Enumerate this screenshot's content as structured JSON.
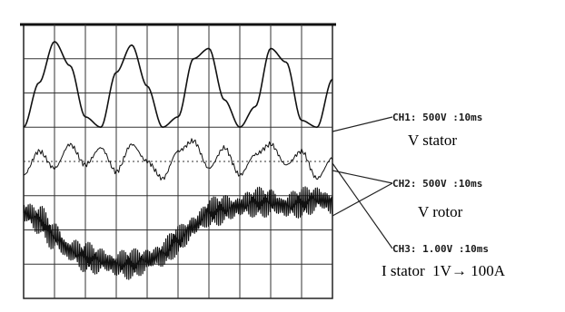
{
  "chart_data": {
    "type": "line",
    "title": "",
    "xlabel": "",
    "ylabel": "",
    "grid": true,
    "x_divisions": 10,
    "y_divisions": 8,
    "channels": [
      {
        "id": "CH1",
        "scale_label": "CH1: 500V :10ms",
        "description": "V stator"
      },
      {
        "id": "CH2",
        "scale_label": "CH2: 500V :10ms",
        "description": "V rotor"
      },
      {
        "id": "CH3",
        "scale_label": "CH3: 1.00V :10ms",
        "description": "I stator  1V→ 100A"
      }
    ],
    "series": [
      {
        "name": "V stator",
        "x": [
          0.0,
          0.5,
          1.0,
          1.5,
          2.0,
          2.5,
          3.0,
          3.5,
          4.0,
          4.5,
          5.0,
          5.5,
          6.0,
          6.5,
          7.0,
          7.5,
          8.0,
          8.5,
          9.0,
          9.5,
          10.0
        ],
        "y": [
          1.0,
          2.3,
          3.5,
          2.8,
          1.3,
          1.0,
          2.6,
          3.4,
          2.2,
          1.0,
          1.3,
          3.0,
          3.3,
          1.8,
          1.0,
          1.6,
          3.3,
          2.9,
          1.2,
          1.0,
          2.4
        ]
      },
      {
        "name": "V rotor",
        "x": [
          0.0,
          0.5,
          1.0,
          1.5,
          2.0,
          2.5,
          3.0,
          3.5,
          4.0,
          4.5,
          5.0,
          5.5,
          6.0,
          6.5,
          7.0,
          7.5,
          8.0,
          8.5,
          9.0,
          9.5,
          10.0
        ],
        "y": [
          -0.4,
          0.3,
          -0.2,
          0.5,
          -0.1,
          0.4,
          -0.3,
          0.5,
          0.0,
          -0.5,
          0.3,
          0.6,
          -0.2,
          0.4,
          -0.4,
          0.2,
          0.5,
          -0.1,
          0.3,
          -0.5,
          0.1
        ]
      },
      {
        "name": "I stator",
        "x": [
          0.0,
          0.5,
          1.0,
          1.5,
          2.0,
          2.5,
          3.0,
          3.5,
          4.0,
          4.5,
          5.0,
          5.5,
          6.0,
          6.5,
          7.0,
          7.5,
          8.0,
          8.5,
          9.0,
          9.5,
          10.0
        ],
        "y": [
          -1.5,
          -1.7,
          -2.2,
          -2.6,
          -2.8,
          -2.9,
          -3.0,
          -3.0,
          -2.9,
          -2.7,
          -2.3,
          -1.9,
          -1.5,
          -1.4,
          -1.3,
          -1.2,
          -1.2,
          -1.3,
          -1.2,
          -1.1,
          -1.2
        ]
      }
    ]
  }
}
